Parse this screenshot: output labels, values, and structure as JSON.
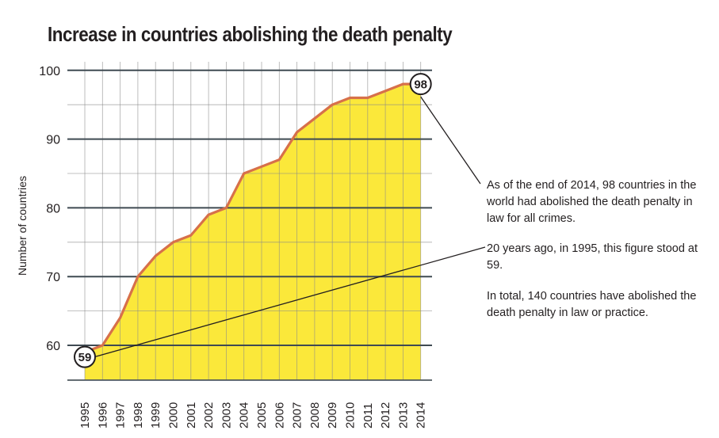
{
  "chart_data": {
    "type": "area",
    "title": "Increase in countries abolishing the death penalty",
    "ylabel": "Number of countries",
    "xlabel": "",
    "ylim": [
      55,
      100
    ],
    "yticks": [
      60,
      70,
      80,
      90,
      100
    ],
    "x": [
      "1995",
      "1996",
      "1997",
      "1998",
      "1999",
      "2000",
      "2001",
      "2002",
      "2003",
      "2004",
      "2005",
      "2006",
      "2007",
      "2008",
      "2009",
      "2010",
      "2011",
      "2012",
      "2013",
      "2014"
    ],
    "values": [
      59,
      60,
      64,
      70,
      73,
      75,
      76,
      79,
      80,
      85,
      86,
      87,
      91,
      93,
      95,
      96,
      96,
      97,
      98,
      98
    ],
    "fill_color": "#fbe83a",
    "line_color": "#d7704a",
    "grid": true,
    "callouts": [
      {
        "label": "98",
        "year": "2014",
        "value": 98
      },
      {
        "label": "59",
        "year": "1995",
        "value": 59
      }
    ]
  },
  "annotations": {
    "note1": "As of the end of 2014, 98 countries in the world had abolished the death penalty in law for all crimes.",
    "note2": "20 years ago, in 1995, this figure stood at 59.",
    "note3": "In total, 140 countries have abolished the death penalty in law or practice."
  }
}
